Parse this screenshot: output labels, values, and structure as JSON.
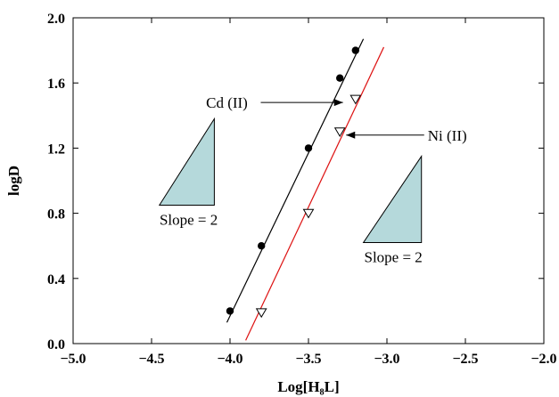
{
  "chart_data": {
    "type": "scatter",
    "xlabel": "Log[H₈L]",
    "ylabel": "logD",
    "xlim": [
      -5.0,
      -2.0
    ],
    "ylim": [
      0.0,
      2.0
    ],
    "x_ticks": [
      "−5.0",
      "−4.5",
      "−4.0",
      "−3.5",
      "−3.0",
      "−2.5",
      "−2.0"
    ],
    "y_ticks": [
      "0.0",
      "0.4",
      "0.8",
      "1.2",
      "1.6",
      "2.0"
    ],
    "grid": false,
    "series": [
      {
        "marker": "filled-circle",
        "color": "#000000",
        "x": [
          -4.0,
          -3.8,
          -3.5,
          -3.3,
          -3.2
        ],
        "y": [
          0.2,
          0.6,
          1.2,
          1.63,
          1.8
        ],
        "fit_line": {
          "x": [
            -4.02,
            -3.15
          ],
          "y": [
            0.13,
            1.87
          ]
        }
      },
      {
        "marker": "open-triangle-down",
        "color": "#dd1111",
        "x": [
          -3.8,
          -3.5,
          -3.3,
          -3.2
        ],
        "y": [
          0.19,
          0.8,
          1.3,
          1.5
        ],
        "fit_line": {
          "x": [
            -3.9,
            -3.02
          ],
          "y": [
            0.02,
            1.82
          ]
        }
      }
    ],
    "annotations": [
      {
        "text": "Cd (II)",
        "text_xy": [
          -4.02,
          1.48
        ],
        "arrow_to": [
          -3.28,
          1.48
        ]
      },
      {
        "text": "Ni (II)",
        "text_xy": [
          -2.74,
          1.28
        ],
        "arrow_to": [
          -3.26,
          1.28
        ]
      }
    ],
    "slope_triangles": [
      {
        "label": "Slope = 2",
        "x1": -4.45,
        "x2": -4.1,
        "y_base": 0.85,
        "y_top": 1.38,
        "fill": "#b5d9db"
      },
      {
        "label": "Slope = 2",
        "x1": -3.15,
        "x2": -2.78,
        "y_base": 0.62,
        "y_top": 1.15,
        "fill": "#b5d9db"
      }
    ]
  }
}
